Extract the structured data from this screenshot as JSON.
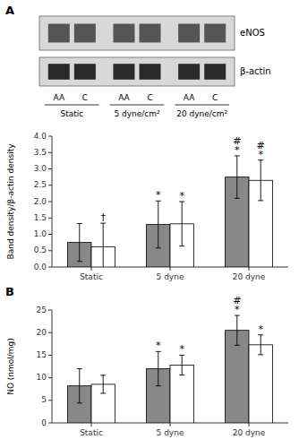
{
  "chart_data": [
    {
      "type": "blot",
      "title": "A",
      "categories": [
        "AA",
        "C",
        "AA",
        "C",
        "AA",
        "C"
      ],
      "group_labels": [
        "Static",
        "5 dyne/cm²",
        "20 dyne/cm²"
      ],
      "row_labels": [
        "eNOS",
        "β-actin"
      ]
    },
    {
      "type": "bar",
      "categories": [
        "Static",
        "5 dyne",
        "20 dyne"
      ],
      "ylabel": "Band density/β-actin density",
      "ylim": [
        0,
        4
      ],
      "yticks": [
        {
          "value": 0,
          "label": "0.0"
        },
        0.5,
        {
          "value": 1,
          "label": "1.0"
        },
        1.5,
        {
          "value": 2,
          "label": "2.0"
        },
        2.5,
        {
          "value": 3,
          "label": "3.0"
        },
        3.5,
        {
          "value": 4,
          "label": "4.0"
        }
      ],
      "series": [
        {
          "color": "#888888",
          "values": [
            0.75,
            1.3,
            2.75
          ],
          "errors": [
            0.58,
            0.72,
            0.65
          ]
        },
        {
          "color": "#ffffff",
          "values": [
            0.62,
            1.32,
            2.65
          ],
          "errors": [
            0.72,
            0.68,
            0.62
          ]
        }
      ],
      "annotations": [
        {
          "text": "†",
          "category": 0,
          "series": 1
        },
        {
          "text": "*",
          "category": 1,
          "series": 0
        },
        {
          "text": "*",
          "category": 1,
          "series": 1
        },
        {
          "text": "*",
          "category": 2,
          "series": 0
        },
        {
          "text": "#",
          "category": 2,
          "series": 0
        },
        {
          "text": "*",
          "category": 2,
          "series": 1
        },
        {
          "text": "#",
          "category": 2,
          "series": 1
        }
      ]
    },
    {
      "type": "bar",
      "title": "B",
      "categories": [
        "Static",
        "5 dyne",
        "20 dyne"
      ],
      "ylabel": "NO (nmol/mg)",
      "ylim": [
        0,
        25
      ],
      "yticks": [
        0,
        5,
        10,
        15,
        20,
        25
      ],
      "series": [
        {
          "color": "#888888",
          "values": [
            8.2,
            12.0,
            20.5
          ],
          "errors": [
            3.8,
            3.8,
            3.3
          ]
        },
        {
          "color": "#ffffff",
          "values": [
            8.55,
            12.8,
            17.3
          ],
          "errors": [
            2.0,
            2.2,
            2.2
          ]
        }
      ],
      "annotations": [
        {
          "text": "*",
          "category": 1,
          "series": 0
        },
        {
          "text": "*",
          "category": 1,
          "series": 1
        },
        {
          "text": "*",
          "category": 2,
          "series": 0
        },
        {
          "text": "#",
          "category": 2,
          "series": 0
        },
        {
          "text": "*",
          "category": 2,
          "series": 1
        }
      ]
    }
  ]
}
